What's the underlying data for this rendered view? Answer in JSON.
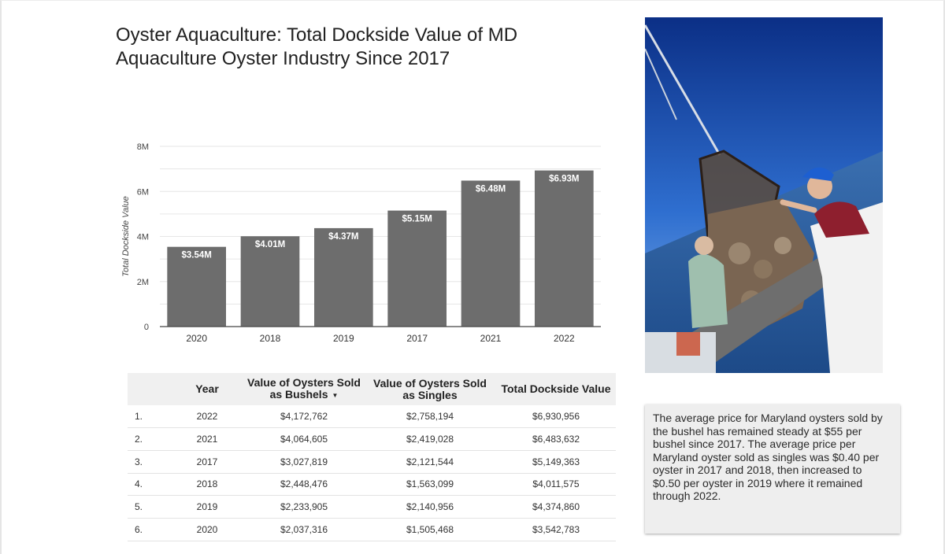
{
  "page": {
    "title": "Oyster Aquaculture: Total Dockside Value of MD Aquaculture Oyster Industry Since 2017"
  },
  "chart_data": {
    "type": "bar",
    "title": "",
    "xlabel": "",
    "ylabel": "Total Dockside Value",
    "categories": [
      "2020",
      "2018",
      "2019",
      "2017",
      "2021",
      "2022"
    ],
    "values": [
      3.54,
      4.01,
      4.37,
      5.15,
      6.48,
      6.93
    ],
    "value_labels": [
      "$3.54M",
      "$4.01M",
      "$4.37M",
      "$5.15M",
      "$6.48M",
      "$6.93M"
    ],
    "ylim": [
      0,
      8
    ],
    "y_ticks": [
      0,
      2,
      4,
      6,
      8
    ],
    "y_tick_labels": [
      "0",
      "2M",
      "4M",
      "6M",
      "8M"
    ],
    "grid": true,
    "colors": {
      "bar": "#6d6d6d",
      "grid": "#e6e6e6",
      "axis": "#444444",
      "label": "#ffffff"
    }
  },
  "table": {
    "headers": {
      "index": "",
      "year": "Year",
      "bushels": "Value of Oysters Sold as Bushels",
      "singles": "Value of Oysters Sold as Singles",
      "total": "Total Dockside Value"
    },
    "sort_icon": "sort-descending-icon",
    "rows": [
      {
        "idx": "1.",
        "year": "2022",
        "bushels": "$4,172,762",
        "singles": "$2,758,194",
        "total": "$6,930,956"
      },
      {
        "idx": "2.",
        "year": "2021",
        "bushels": "$4,064,605",
        "singles": "$2,419,028",
        "total": "$6,483,632"
      },
      {
        "idx": "3.",
        "year": "2017",
        "bushels": "$3,027,819",
        "singles": "$2,121,544",
        "total": "$5,149,363"
      },
      {
        "idx": "4.",
        "year": "2018",
        "bushels": "$2,448,476",
        "singles": "$1,563,099",
        "total": "$4,011,575"
      },
      {
        "idx": "5.",
        "year": "2019",
        "bushels": "$2,233,905",
        "singles": "$2,140,956",
        "total": "$4,374,860"
      },
      {
        "idx": "6.",
        "year": "2020",
        "bushels": "$2,037,316",
        "singles": "$1,505,468",
        "total": "$3,542,783"
      }
    ]
  },
  "note": {
    "text": "The average price for Maryland oysters sold by the bushel has remained steady at $55 per bushel since 2017. The average price per Maryland oyster sold as singles was $0.40 per oyster in 2017 and 2018, then increased to $0.50 per oyster in 2019 where it remained through 2022."
  }
}
